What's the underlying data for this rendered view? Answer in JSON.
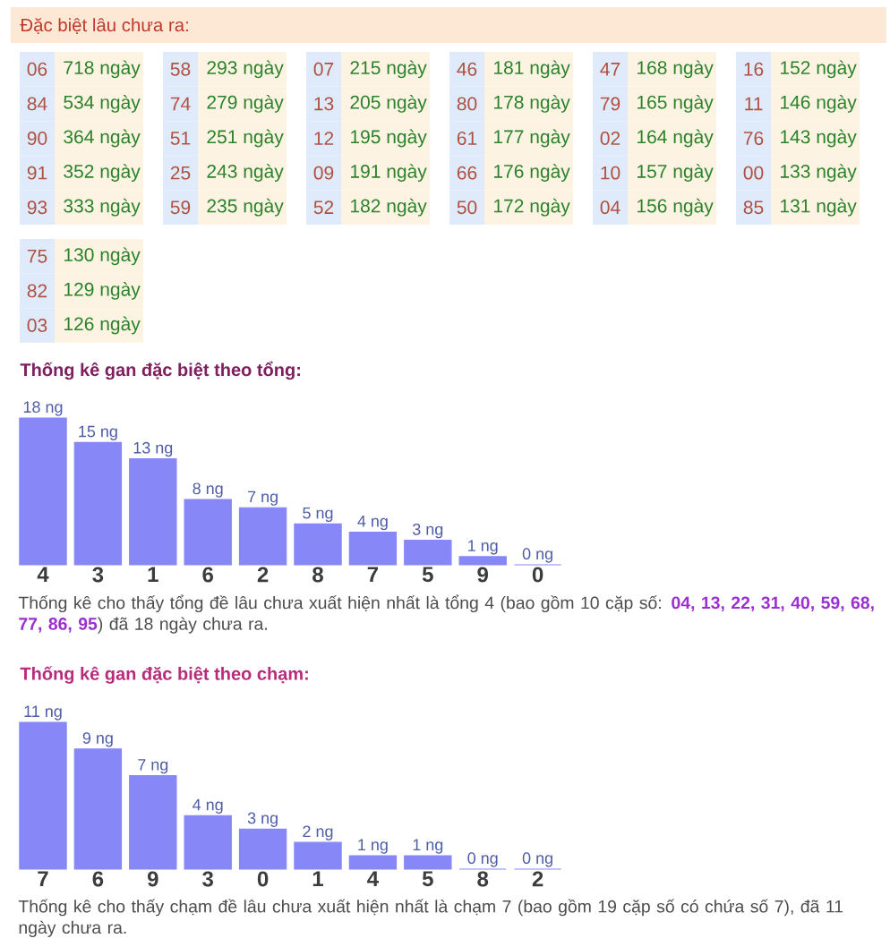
{
  "chart_data": [
    {
      "type": "other",
      "title": "Đặc biệt lâu chưa ra:",
      "annotations": [
        "06",
        "718 ngày",
        "84",
        "534 ngày",
        "90",
        "364 ngày",
        "91",
        "352 ngày",
        "93",
        "333 ngày",
        "58",
        "293 ngày",
        "74",
        "279 ngày",
        "51",
        "251 ngày",
        "25",
        "243 ngày",
        "59",
        "235 ngày",
        "07",
        "215 ngày",
        "13",
        "205 ngày",
        "12",
        "195 ngày",
        "09",
        "191 ngày",
        "52",
        "182 ngày",
        "46",
        "181 ngày",
        "80",
        "178 ngày",
        "61",
        "177 ngày",
        "66",
        "176 ngày",
        "50",
        "172 ngày",
        "47",
        "168 ngày",
        "79",
        "165 ngày",
        "02",
        "164 ngày",
        "10",
        "157 ngày",
        "04",
        "156 ngày",
        "16",
        "152 ngày",
        "11",
        "146 ngày",
        "76",
        "143 ngày",
        "00",
        "133 ngày",
        "85",
        "131 ngày",
        "75",
        "130 ngày",
        "82",
        "129 ngày",
        "03",
        "126 ngày"
      ]
    },
    {
      "type": "bar",
      "title": "Thống kê gan đặc biệt theo tổng:",
      "color": "#8787f7",
      "categories": [
        "4",
        "3",
        "1",
        "6",
        "2",
        "8",
        "7",
        "5",
        "9",
        "0"
      ],
      "values": [
        18,
        15,
        13,
        8,
        7,
        5,
        4,
        3,
        1,
        0
      ],
      "value_labels": [
        "18 ng",
        "15 ng",
        "13 ng",
        "8 ng",
        "7 ng",
        "5 ng",
        "4 ng",
        "3 ng",
        "1 ng",
        "0 ng"
      ],
      "annotations": [
        "Thống kê cho thấy tổng đề lâu chưa xuất hiện nhất là tổng 4 (bao gồm 10 cặp số: **04, 13, 22, 31, 40, 59, 68, 77, 86, 95**) đã 18 ngày chưa ra."
      ]
    },
    {
      "type": "bar",
      "title": "Thống kê gan đặc biệt theo chạm:",
      "color": "#8787f7",
      "categories": [
        "7",
        "6",
        "9",
        "3",
        "0",
        "1",
        "4",
        "5",
        "8",
        "2"
      ],
      "values": [
        11,
        9,
        7,
        4,
        3,
        2,
        1,
        1,
        0,
        0
      ],
      "value_labels": [
        "11 ng",
        "9 ng",
        "7 ng",
        "4 ng",
        "3 ng",
        "2 ng",
        "1 ng",
        "1 ng",
        "0 ng",
        "0 ng"
      ],
      "annotations": [
        "Thống kê cho thấy chạm đề lâu chưa xuất hiện nhất là chạm 7 (bao gồm 19 cặp số có chứa số 7), đã 11 ngày chưa ra."
      ]
    }
  ]
}
